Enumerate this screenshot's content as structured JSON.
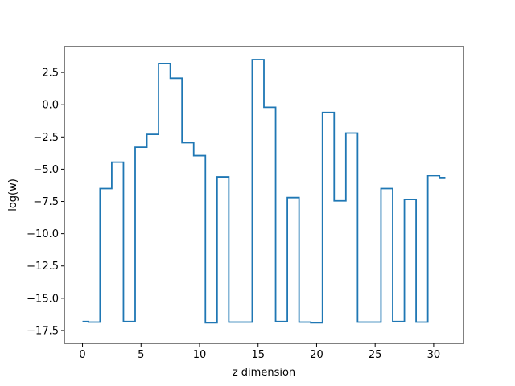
{
  "chart_data": {
    "type": "line",
    "drawstyle": "steps-mid",
    "title": "",
    "xlabel": "z dimension",
    "ylabel": "log(w)",
    "xlim": [
      -1.55,
      32.55
    ],
    "ylim": [
      -18.5,
      4.5
    ],
    "xticks": [
      0,
      5,
      10,
      15,
      20,
      25,
      30
    ],
    "yticks": [
      2.5,
      0.0,
      -2.5,
      -5.0,
      -7.5,
      -10.0,
      -12.5,
      -15.0,
      -17.5
    ],
    "ytick_labels": [
      "2.5",
      "0.0",
      "−2.5",
      "−5.0",
      "−7.5",
      "−10.0",
      "−12.5",
      "−15.0",
      "−17.5"
    ],
    "grid": false,
    "series": [
      {
        "color": "#1f77b4",
        "x": [
          0,
          1,
          2,
          3,
          4,
          5,
          6,
          7,
          8,
          9,
          10,
          11,
          12,
          13,
          14,
          15,
          16,
          17,
          18,
          19,
          20,
          21,
          22,
          23,
          24,
          25,
          26,
          27,
          28,
          29,
          30,
          31
        ],
        "values": [
          -16.8,
          -16.85,
          -6.5,
          -4.45,
          -16.8,
          -3.3,
          -2.3,
          3.2,
          2.05,
          -2.95,
          -3.95,
          -16.9,
          -5.6,
          -16.85,
          -16.85,
          3.5,
          -0.2,
          -16.8,
          -7.2,
          -16.85,
          -16.9,
          -0.6,
          -7.45,
          -2.2,
          -16.85,
          -16.85,
          -6.5,
          -16.8,
          -7.35,
          -16.85,
          -5.5,
          -5.65
        ]
      }
    ]
  }
}
